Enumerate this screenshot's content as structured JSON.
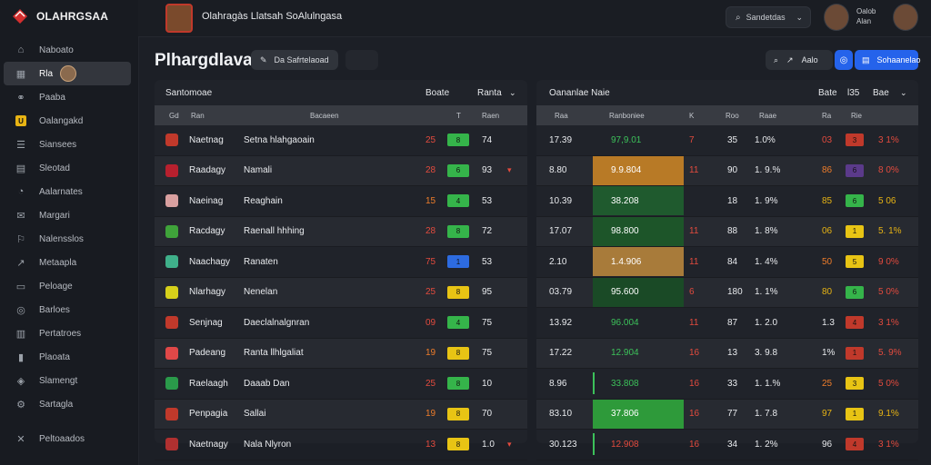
{
  "app": {
    "name": "OLAHRGSAA"
  },
  "sidebar": {
    "items": [
      {
        "label": "Naboato",
        "icon": "home-icon"
      },
      {
        "label": "Rla",
        "icon": "grid-icon",
        "active": true
      },
      {
        "label": "Paaba",
        "icon": "link-icon"
      },
      {
        "label": "Oalangakd",
        "icon": "tag-icon"
      },
      {
        "label": "Siansees",
        "icon": "list-icon"
      },
      {
        "label": "Sleotad",
        "icon": "doc-icon"
      },
      {
        "label": "Aalarnates",
        "icon": "chart-icon"
      },
      {
        "label": "Margari",
        "icon": "mail-icon"
      },
      {
        "label": "Nalensslos",
        "icon": "flag-icon"
      },
      {
        "label": "Metaapla",
        "icon": "trend-icon"
      },
      {
        "label": "Peloage",
        "icon": "folder-icon"
      },
      {
        "label": "Barloes",
        "icon": "circle-icon"
      },
      {
        "label": "Pertatroes",
        "icon": "table-icon"
      },
      {
        "label": "Plaoata",
        "icon": "bar-icon"
      },
      {
        "label": "Slamengt",
        "icon": "shield-icon"
      },
      {
        "label": "Sartagla",
        "icon": "cog-icon"
      },
      {
        "label": "Peltoaados",
        "icon": "cross-icon"
      }
    ]
  },
  "topbar": {
    "title": "Olahragàs Llatsah SoAlulngasa",
    "search_label": "Sandetdas",
    "user": {
      "line1": "Oalob",
      "line2": "Alan"
    }
  },
  "page": {
    "title": "Plhargdlava",
    "pill_button": "Da Safrtelaoad",
    "ghost_button": "",
    "actions": {
      "label": "Aalo"
    },
    "blue_button": "Sohaanelao"
  },
  "left_panel": {
    "header": "Santomoae",
    "header_cols": [
      "Boate",
      "Ranta"
    ],
    "col_labels": [
      "Gd",
      "Ran",
      "Bacaeen",
      "T",
      "Raen"
    ],
    "rows": [
      {
        "team": "Naetnag",
        "name": "Setna hlahgaoain",
        "score": "25",
        "badge": "8",
        "badge_color": "#35b44a",
        "val": "74",
        "arrow": "",
        "score_color": "#e34b3e",
        "flag": "#c0392b"
      },
      {
        "team": "Raadagy",
        "name": "Namali",
        "score": "28",
        "badge": "6",
        "badge_color": "#35b44a",
        "val": "93",
        "arrow": "▾",
        "score_color": "#e34b3e",
        "flag": "#b7202e"
      },
      {
        "team": "Naeinag",
        "name": "Reaghain",
        "score": "15",
        "badge": "4",
        "badge_color": "#35b44a",
        "val": "53",
        "arrow": "",
        "score_color": "#ef7d2a",
        "flag": "#d9a0a0"
      },
      {
        "team": "Racdagy",
        "name": "Raenall hhhing",
        "score": "28",
        "badge": "8",
        "badge_color": "#35b44a",
        "val": "72",
        "arrow": "",
        "score_color": "#e34b3e",
        "flag": "#3fa33a"
      },
      {
        "team": "Naachagy",
        "name": "Ranaten",
        "score": "75",
        "badge": "1",
        "badge_color": "#2d6be0",
        "val": "53",
        "arrow": "",
        "score_color": "#e34b3e",
        "flag": "#3fb08a"
      },
      {
        "team": "Nlarhagy",
        "name": "Nenelan",
        "score": "25",
        "badge": "8",
        "badge_color": "#e8c414",
        "val": "95",
        "arrow": "",
        "score_color": "#e34b3e",
        "flag": "#d6d01a"
      },
      {
        "team": "Senjnag",
        "name": "Daeclalnalgnran",
        "score": "09",
        "badge": "4",
        "badge_color": "#35b44a",
        "val": "75",
        "arrow": "",
        "score_color": "#e34b3e",
        "flag": "#c0392b"
      },
      {
        "team": "Padeang",
        "name": "Ranta llhlgaliat",
        "score": "19",
        "badge": "8",
        "badge_color": "#e8c414",
        "val": "75",
        "arrow": "",
        "score_color": "#ef7d2a",
        "flag": "#e04848"
      },
      {
        "team": "Raelaagh",
        "name": "Daaab Dan",
        "score": "25",
        "badge": "8",
        "badge_color": "#35b44a",
        "val": "10",
        "arrow": "",
        "score_color": "#e34b3e",
        "flag": "#2a9a4a"
      },
      {
        "team": "Penpagia",
        "name": "Sallai",
        "score": "19",
        "badge": "8",
        "badge_color": "#e8c414",
        "val": "70",
        "arrow": "",
        "score_color": "#ef7d2a",
        "flag": "#c0392b"
      },
      {
        "team": "Naetnagy",
        "name": "Nala Nlyron",
        "score": "13",
        "badge": "8",
        "badge_color": "#e8c414",
        "val": "1.0",
        "arrow": "▾",
        "score_color": "#e34b3e",
        "flag": "#b03030"
      }
    ]
  },
  "right_panel": {
    "header": "Oananlae Naie",
    "header_cols": [
      "Bate",
      "l35",
      "Bae"
    ],
    "col_labels": [
      "Raa",
      "Ranboniee",
      "K",
      "Roo",
      "Raae",
      "Ra",
      "Rie"
    ],
    "rows": [
      {
        "a": "17.39",
        "b": "97,9.01",
        "b_color": "#3cc15a",
        "bg": "",
        "k": "7",
        "k_color": "#e34b3e",
        "c": "35",
        "d": "1.0%",
        "e": "03",
        "e_color": "#e34b3e",
        "mini": "3",
        "mini_color": "#c0392b",
        "f": "3 1%",
        "f_color": "#e34b3e",
        "bar": false
      },
      {
        "a": "8.80",
        "b": "9.9.804",
        "b_color": "#ffffff",
        "bg": "#b87a26",
        "k": "11",
        "k_color": "#e34b3e",
        "c": "90",
        "d": "1. 9.%",
        "e": "86",
        "e_color": "#ef7d2a",
        "mini": "6",
        "mini_color": "#5b3a8a",
        "f": "8 0%",
        "f_color": "#e34b3e",
        "bar": false
      },
      {
        "a": "10.39",
        "b": "38.208",
        "b_color": "#ffffff",
        "bg": "#1f5a2e",
        "k": "",
        "k_color": "#e34b3e",
        "c": "18",
        "d": "1. 9%",
        "e": "85",
        "e_color": "#e8b414",
        "mini": "6",
        "mini_color": "#35b44a",
        "f": "5 06",
        "f_color": "#e8b414",
        "bar": false
      },
      {
        "a": "17.07",
        "b": "98.800",
        "b_color": "#ffffff",
        "bg": "#1d5529",
        "k": "11",
        "k_color": "#e34b3e",
        "c": "88",
        "d": "1. 8%",
        "e": "06",
        "e_color": "#e8b414",
        "mini": "1",
        "mini_color": "#e8c414",
        "f": "5. 1%",
        "f_color": "#e8b414",
        "bar": false
      },
      {
        "a": "2.10",
        "b": "1.4.906",
        "b_color": "#ffffff",
        "bg": "#a87b3a",
        "k": "11",
        "k_color": "#e34b3e",
        "c": "84",
        "d": "1. 4%",
        "e": "50",
        "e_color": "#ef7d2a",
        "mini": "5",
        "mini_color": "#e8c414",
        "f": "9 0%",
        "f_color": "#e34b3e",
        "bar": false
      },
      {
        "a": "03.79",
        "b": "95.600",
        "b_color": "#ffffff",
        "bg": "#1a4a26",
        "k": "6",
        "k_color": "#e34b3e",
        "c": "180",
        "d": "1. 1%",
        "e": "80",
        "e_color": "#e8b414",
        "mini": "6",
        "mini_color": "#35b44a",
        "f": "5 0%",
        "f_color": "#e34b3e",
        "bar": false
      },
      {
        "a": "13.92",
        "b": "96.004",
        "b_color": "#3cc15a",
        "bg": "",
        "k": "11",
        "k_color": "#e34b3e",
        "c": "87",
        "d": "1. 2.0",
        "e": "1.3",
        "e_color": "#e9ebee",
        "mini": "4",
        "mini_color": "#c0392b",
        "f": "3 1%",
        "f_color": "#e34b3e",
        "bar": false
      },
      {
        "a": "17.22",
        "b": "12.904",
        "b_color": "#3cc15a",
        "bg": "",
        "k": "16",
        "k_color": "#e34b3e",
        "c": "13",
        "d": "3. 9.8",
        "e": "1%",
        "e_color": "#e9ebee",
        "mini": "1",
        "mini_color": "#c0392b",
        "f": "5. 9%",
        "f_color": "#e34b3e",
        "bar": false
      },
      {
        "a": "8.96",
        "b": "33.808",
        "b_color": "#3cc15a",
        "bg": "",
        "k": "16",
        "k_color": "#e34b3e",
        "c": "33",
        "d": "1. 1.%",
        "e": "25",
        "e_color": "#ef7d2a",
        "mini": "3",
        "mini_color": "#e8c414",
        "f": "5 0%",
        "f_color": "#e34b3e",
        "bar": true
      },
      {
        "a": "83.10",
        "b": "37.806",
        "b_color": "#ffffff",
        "bg": "#2e9a3a",
        "k": "16",
        "k_color": "#e34b3e",
        "c": "77",
        "d": "1. 7.8",
        "e": "97",
        "e_color": "#e8b414",
        "mini": "1",
        "mini_color": "#e8c414",
        "f": "9.1%",
        "f_color": "#e8b414",
        "bar": false
      },
      {
        "a": "30.123",
        "b": "12.908",
        "b_color": "#e34b3e",
        "bg": "",
        "k": "16",
        "k_color": "#e34b3e",
        "c": "34",
        "d": "1. 2%",
        "e": "96",
        "e_color": "#e9ebee",
        "mini": "4",
        "mini_color": "#c0392b",
        "f": "3 1%",
        "f_color": "#e34b3e",
        "bar": true
      }
    ]
  }
}
